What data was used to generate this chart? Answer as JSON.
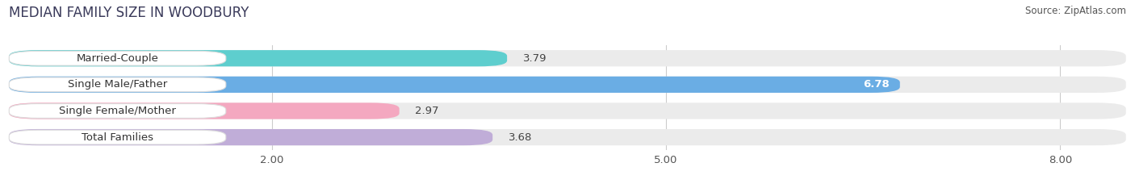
{
  "title": "MEDIAN FAMILY SIZE IN WOODBURY",
  "source": "Source: ZipAtlas.com",
  "categories": [
    "Married-Couple",
    "Single Male/Father",
    "Single Female/Mother",
    "Total Families"
  ],
  "values": [
    3.79,
    6.78,
    2.97,
    3.68
  ],
  "bar_colors": [
    "#5ecece",
    "#6aade4",
    "#f4a8c0",
    "#c0add8"
  ],
  "background_color": "#ffffff",
  "bar_bg_color": "#ebebeb",
  "xlim": [
    0,
    8.5
  ],
  "xmin": 0,
  "xmax": 8.5,
  "xticks": [
    2.0,
    5.0,
    8.0
  ],
  "label_fontsize": 9.5,
  "value_fontsize": 9.5,
  "title_fontsize": 12,
  "bar_height": 0.62,
  "bar_gap": 0.12
}
